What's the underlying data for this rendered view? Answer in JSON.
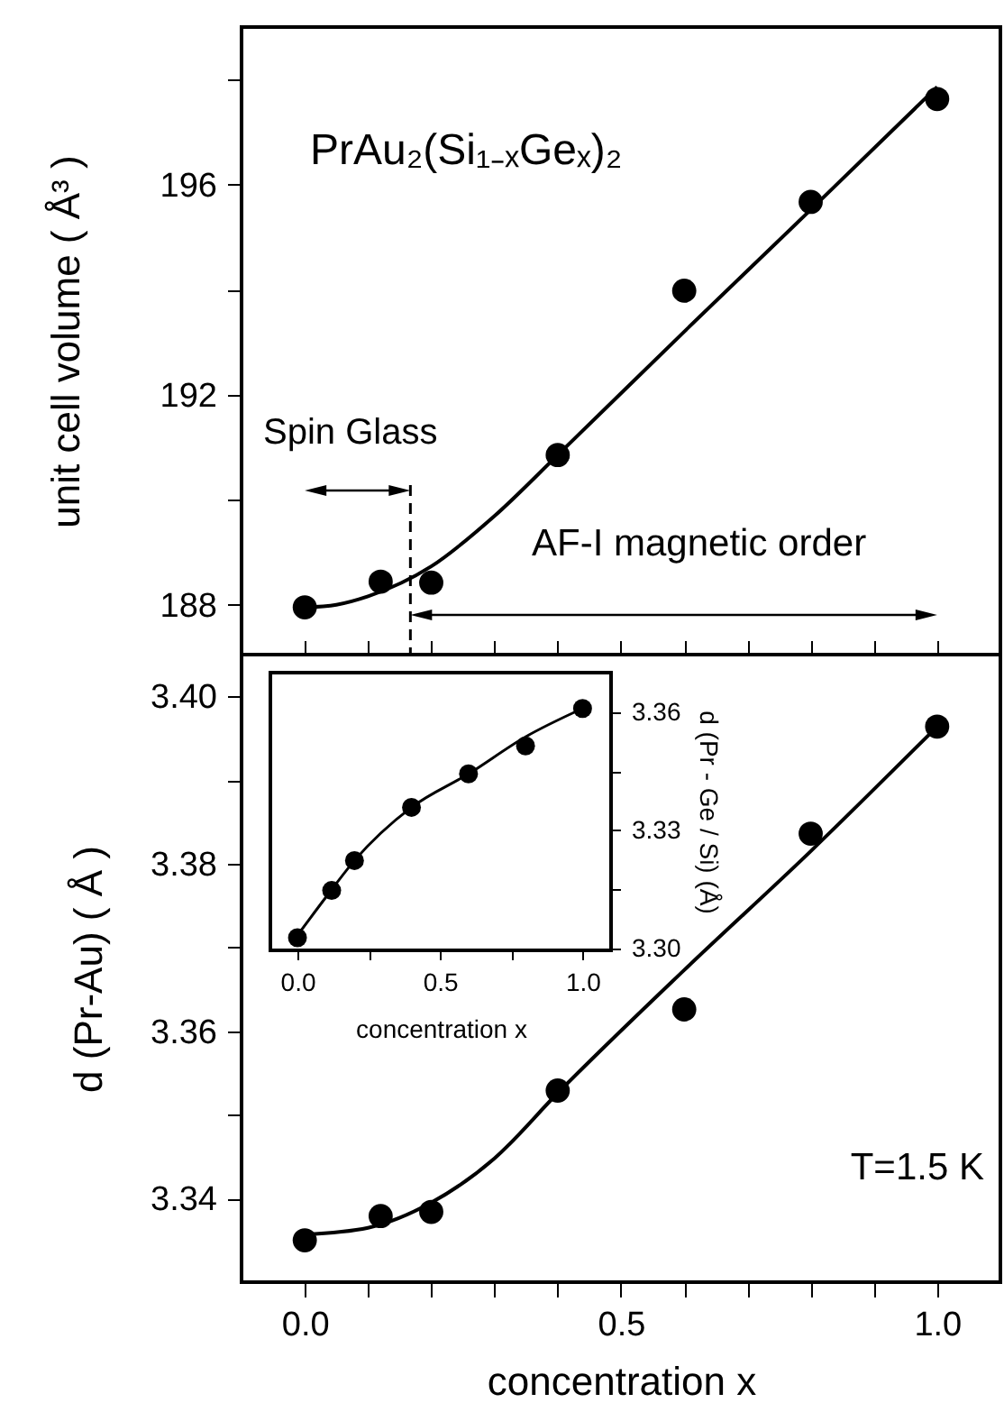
{
  "chart_data": [
    {
      "type": "scatter",
      "ylabel": "unit cell volume ( Å³ )",
      "annotations": [
        "PrAu₂(Si₁₋ₓGeₓ)₂",
        "Spin Glass",
        "AF-I magnetic order"
      ],
      "xlim": [
        -0.1,
        1.1
      ],
      "ylim": [
        187.05,
        199
      ],
      "xticks": [
        0,
        0.1,
        0.2,
        0.3,
        0.4,
        0.5,
        0.6,
        0.7,
        0.8,
        0.9,
        1.0
      ],
      "yticks": [
        188,
        {
          "value": 190,
          "label": null
        },
        192,
        {
          "value": 194,
          "label": null
        },
        196,
        {
          "value": 198,
          "label": null
        }
      ],
      "tick_labels": "y",
      "series": [
        {
          "marker": "circle",
          "color": "#000000",
          "x": [
            0,
            0.12,
            0.2,
            0.4,
            0.6,
            0.8,
            1.0
          ],
          "values": [
            187.95,
            188.44,
            188.42,
            190.85,
            193.98,
            195.67,
            197.63
          ]
        },
        {
          "type": "line",
          "marker": "none",
          "color": "#000000",
          "x": [
            0,
            0.05,
            0.1,
            0.2,
            0.3,
            0.4,
            0.6,
            0.8,
            1.0
          ],
          "values": [
            187.95,
            188.0,
            188.16,
            188.73,
            189.69,
            190.85,
            193.2,
            195.52,
            197.86
          ]
        }
      ],
      "ref_lines": [
        {
          "axis": "x",
          "value": 0.167,
          "line_style": "dashed",
          "color": "#000000"
        }
      ]
    },
    {
      "type": "scatter",
      "xlabel": "concentration x",
      "ylabel": "d (Pr-Au) ( Å )",
      "annotations": [
        "T=1.5 K"
      ],
      "xlim": [
        -0.1,
        1.1
      ],
      "ylim": [
        3.33,
        3.405
      ],
      "xticks": [
        {
          "value": 0,
          "label": "0.0"
        },
        {
          "value": 0.1,
          "label": null
        },
        {
          "value": 0.2,
          "label": null
        },
        {
          "value": 0.3,
          "label": null
        },
        {
          "value": 0.4,
          "label": null
        },
        {
          "value": 0.5,
          "label": "0.5"
        },
        {
          "value": 0.6,
          "label": null
        },
        {
          "value": 0.7,
          "label": null
        },
        {
          "value": 0.8,
          "label": null
        },
        {
          "value": 0.9,
          "label": null
        },
        {
          "value": 1.0,
          "label": "1.0"
        }
      ],
      "yticks": [
        {
          "value": 3.34,
          "label": "3.34"
        },
        {
          "value": 3.35,
          "label": null
        },
        {
          "value": 3.36,
          "label": "3.36"
        },
        {
          "value": 3.37,
          "label": null
        },
        {
          "value": 3.38,
          "label": "3.38"
        },
        {
          "value": 3.39,
          "label": null
        },
        {
          "value": 3.4,
          "label": "3.40"
        }
      ],
      "series": [
        {
          "marker": "circle",
          "color": "#000000",
          "x": [
            0,
            0.12,
            0.2,
            0.4,
            0.6,
            0.8,
            1.0
          ],
          "values": [
            3.335,
            3.3379,
            3.3384,
            3.3529,
            3.3626,
            3.3836,
            3.3964
          ]
        },
        {
          "type": "line",
          "marker": "none",
          "color": "#000000",
          "x": [
            0,
            0.1,
            0.2,
            0.3,
            0.4,
            0.6,
            0.8,
            1.0
          ],
          "values": [
            3.3357,
            3.3365,
            3.3395,
            3.3448,
            3.3526,
            3.3673,
            3.3815,
            3.3964
          ]
        }
      ]
    },
    {
      "type": "scatter",
      "xlabel": "concentration x",
      "y2label": "d (Pr - Ge / Si) (Å)",
      "xlim": [
        -0.095,
        1.1
      ],
      "y2lim": [
        3.2995,
        3.37
      ],
      "xticks": [
        {
          "value": 0,
          "label": "0.0"
        },
        {
          "value": 0.25,
          "label": null
        },
        {
          "value": 0.5,
          "label": "0.5"
        },
        {
          "value": 0.75,
          "label": null
        },
        {
          "value": 1.0,
          "label": "1.0"
        }
      ],
      "y2ticks": [
        {
          "value": 3.3,
          "label": "3.30"
        },
        {
          "value": 3.315,
          "label": null
        },
        {
          "value": 3.33,
          "label": "3.33"
        },
        {
          "value": 3.345,
          "label": null
        },
        {
          "value": 3.36,
          "label": "3.36"
        }
      ],
      "series": [
        {
          "axis": "y2",
          "marker": "circle",
          "color": "#000000",
          "x": [
            0,
            0.12,
            0.2,
            0.4,
            0.6,
            0.8,
            1.0
          ],
          "values": [
            3.3027,
            3.3147,
            3.3223,
            3.3358,
            3.3443,
            3.3514,
            3.3609
          ]
        },
        {
          "axis": "y2",
          "type": "line",
          "marker": "none",
          "color": "#000000",
          "x": [
            0,
            0.1,
            0.2,
            0.4,
            0.6,
            0.8,
            1.0
          ],
          "values": [
            3.3033,
            3.313,
            3.3223,
            3.3358,
            3.3443,
            3.3537,
            3.3609
          ]
        }
      ]
    }
  ]
}
